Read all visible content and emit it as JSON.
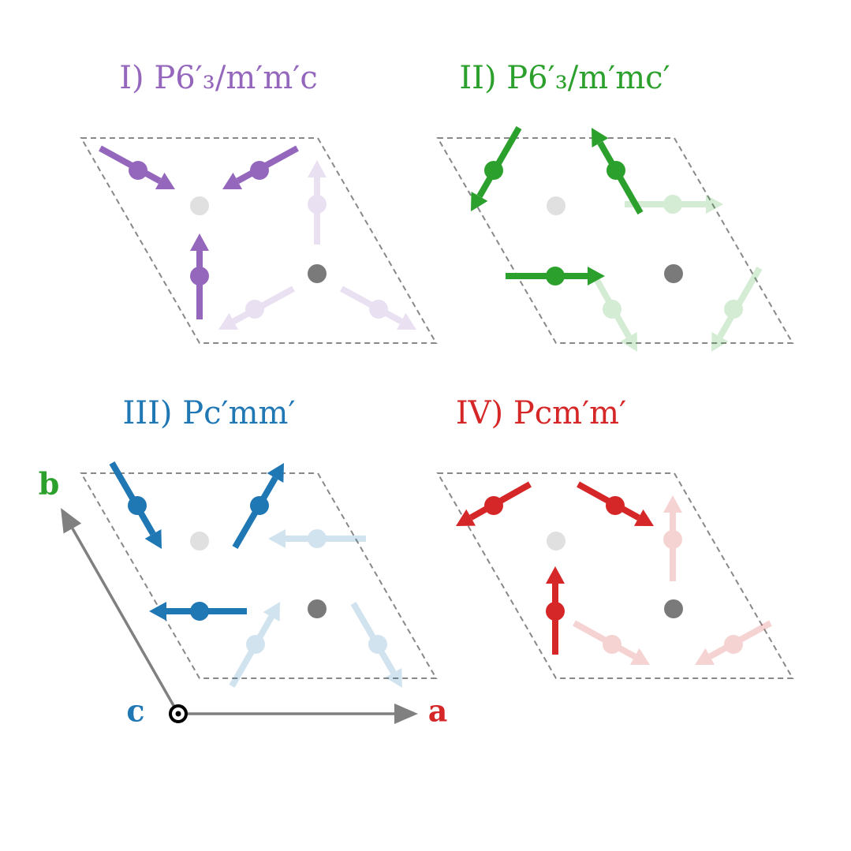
{
  "panels": [
    {
      "title": "I) P6′₃/m′m′c"
    },
    {
      "title": "II) P6′₃/m′mc′"
    },
    {
      "title": "III) Pc′mm′"
    },
    {
      "title": "IV) Pcm′m′"
    }
  ],
  "axes": {
    "a": "a",
    "b": "b",
    "c": "c"
  }
}
